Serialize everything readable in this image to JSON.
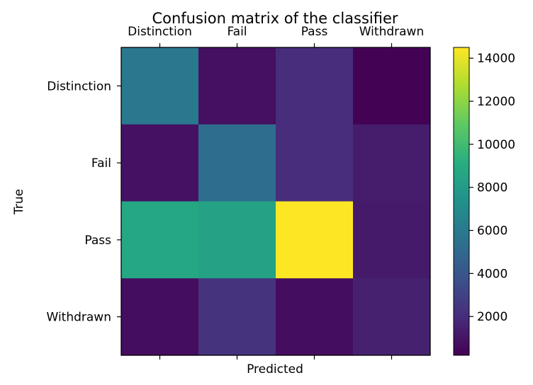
{
  "chart_data": {
    "type": "heatmap",
    "title": "Confusion matrix of the classifier",
    "xlabel": "Predicted",
    "ylabel": "True",
    "x_categories": [
      "Distinction",
      "Fail",
      "Pass",
      "Withdrawn"
    ],
    "y_categories": [
      "Distinction",
      "Fail",
      "Pass",
      "Withdrawn"
    ],
    "values": [
      [
        5900,
        800,
        2000,
        250
      ],
      [
        900,
        5300,
        2000,
        1300
      ],
      [
        8700,
        8400,
        14500,
        1200
      ],
      [
        700,
        2300,
        700,
        1500
      ]
    ],
    "colormap": "viridis",
    "colorbar": {
      "range": [
        200,
        14500
      ],
      "ticks": [
        2000,
        4000,
        6000,
        8000,
        10000,
        12000,
        14000
      ],
      "tick_labels": [
        "2000",
        "4000",
        "6000",
        "8000",
        "10000",
        "12000",
        "14000"
      ]
    },
    "grid": false
  }
}
